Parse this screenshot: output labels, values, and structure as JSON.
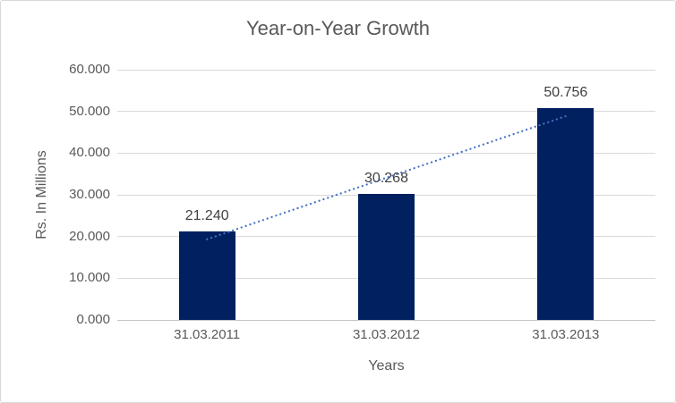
{
  "chart": {
    "title": "Year-on-Year Growth",
    "colors": {
      "bar": "#002060",
      "trendline": "#4472C4",
      "gridline": "#D9D9D9",
      "axis_line": "#C3C3C3",
      "tick_text": "#595959",
      "data_label_text": "#404040",
      "border": "#D9D9D9",
      "background": "#FFFFFF"
    }
  },
  "chart_data": {
    "type": "bar",
    "title": "Year-on-Year Growth",
    "xlabel": "Years",
    "ylabel": "Rs. In Millions",
    "categories": [
      "31.03.2011",
      "31.03.2012",
      "31.03.2013"
    ],
    "values": [
      21.24,
      30.268,
      50.756
    ],
    "value_labels": [
      "21.240",
      "30.268",
      "50.756"
    ],
    "ylim": [
      0,
      60
    ],
    "y_tick_step": 10,
    "y_tick_labels": [
      "0.000",
      "10.000",
      "20.000",
      "30.000",
      "40.000",
      "50.000",
      "60.000"
    ],
    "grid": true,
    "legend_position": "none",
    "trendline": {
      "type": "linear",
      "style": "dotted",
      "color": "#4472C4"
    }
  }
}
